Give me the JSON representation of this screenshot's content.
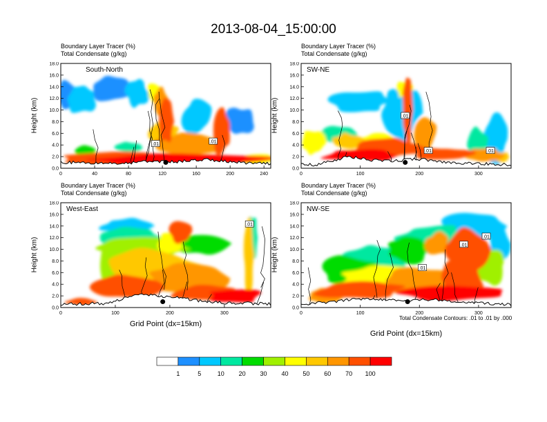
{
  "figure": {
    "title": "2013-08-04_15:00:00",
    "footnote": "Total Condensate Contours: .01 to .01 by .000",
    "colorbar": {
      "labels": [
        "1",
        "5",
        "10",
        "20",
        "30",
        "40",
        "50",
        "60",
        "70",
        "100"
      ],
      "colors": [
        "#ffffff",
        "#1e90ff",
        "#00c8ff",
        "#00e8a0",
        "#00dc00",
        "#a0f000",
        "#ffff00",
        "#ffc800",
        "#ff9600",
        "#ff5000",
        "#ff0000"
      ]
    }
  },
  "chart_data": [
    {
      "type": "heatmap",
      "panel_label": "South-North",
      "header_line1": "Boundary Layer Tracer    (%)",
      "header_line2": "Total Condensate   (g/kg)",
      "ylabel": "Height (km)",
      "xlabel": "",
      "xlim": [
        0,
        248
      ],
      "ylim": [
        0,
        18
      ],
      "xticks": [
        "0",
        "40",
        "80",
        "120",
        "160",
        "200",
        "240"
      ],
      "yticks": [
        "0.0",
        "2.0",
        "4.0",
        "6.0",
        "8.0",
        "10.0",
        "12.0",
        "14.0",
        "16.0",
        "18.0"
      ],
      "contour_labels": [
        {
          "text": ".01",
          "x": 112,
          "y": 4.2
        },
        {
          "text": ".01",
          "x": 180,
          "y": 4.6
        }
      ],
      "marker": {
        "x": 124,
        "y": 1.0
      }
    },
    {
      "type": "heatmap",
      "panel_label": "SW-NE",
      "header_line1": "Boundary Layer Tracer    (%)",
      "header_line2": "Total Condensate   (g/kg)",
      "ylabel": "Height (km)",
      "xlabel": "",
      "xlim": [
        0,
        355
      ],
      "ylim": [
        0,
        18
      ],
      "xticks": [
        "0",
        "100",
        "200",
        "300"
      ],
      "yticks": [
        "0.0",
        "2.0",
        "4.0",
        "6.0",
        "8.0",
        "10.0",
        "12.0",
        "14.0",
        "16.0",
        "18.0"
      ],
      "contour_labels": [
        {
          "text": ".01",
          "x": 176,
          "y": 9.0
        },
        {
          "text": ".01",
          "x": 215,
          "y": 3.0
        },
        {
          "text": ".01",
          "x": 320,
          "y": 3.0
        }
      ],
      "marker": {
        "x": 176,
        "y": 1.0
      }
    },
    {
      "type": "heatmap",
      "panel_label": "West-East",
      "header_line1": "Boundary Layer Tracer    (%)",
      "header_line2": "Total Condensate   (g/kg)",
      "ylabel": "Height (km)",
      "xlabel": "Grid Point  (dx=15km)",
      "xlim": [
        0,
        385
      ],
      "ylim": [
        0,
        18
      ],
      "xticks": [
        "0",
        "100",
        "200",
        "300"
      ],
      "yticks": [
        "0.0",
        "2.0",
        "4.0",
        "6.0",
        "8.0",
        "10.0",
        "12.0",
        "14.0",
        "16.0",
        "18.0"
      ],
      "contour_labels": [
        {
          "text": ".01",
          "x": 346,
          "y": 14.3
        }
      ],
      "marker": {
        "x": 187,
        "y": 1.0
      }
    },
    {
      "type": "heatmap",
      "panel_label": "NW-SE",
      "header_line1": "Boundary Layer Tracer    (%)",
      "header_line2": "Total Condensate   (g/kg)",
      "ylabel": "Height (km)",
      "xlabel": "Grid Point  (dx=15km)",
      "xlim": [
        0,
        355
      ],
      "ylim": [
        0,
        18
      ],
      "xticks": [
        "0",
        "100",
        "200",
        "300"
      ],
      "yticks": [
        "0.0",
        "2.0",
        "4.0",
        "6.0",
        "8.0",
        "10.0",
        "12.0",
        "14.0",
        "16.0",
        "18.0"
      ],
      "contour_labels": [
        {
          "text": ".01",
          "x": 205,
          "y": 6.8
        },
        {
          "text": ".01",
          "x": 275,
          "y": 10.8
        },
        {
          "text": ".01",
          "x": 313,
          "y": 12.2
        }
      ],
      "marker": {
        "x": 180,
        "y": 1.0
      }
    }
  ]
}
